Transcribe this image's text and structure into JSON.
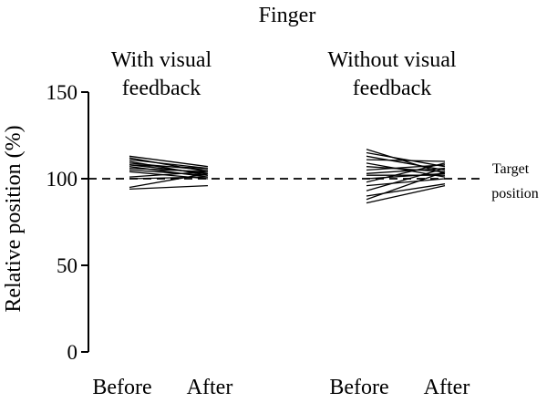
{
  "chart_data": {
    "type": "line",
    "title": "Finger",
    "ylabel": "Relative position (%)",
    "ylim": [
      0,
      150
    ],
    "yticks": [
      0,
      50,
      100,
      150
    ],
    "grid": false,
    "reference_line": {
      "y": 100,
      "label_line1": "Target",
      "label_line2": "position",
      "style": "dashed"
    },
    "groups": [
      {
        "label_line1": "With visual",
        "label_line2": "feedback",
        "categories": [
          "Before",
          "After"
        ],
        "pairs": [
          [
            113,
            107
          ],
          [
            112,
            104
          ],
          [
            111,
            106
          ],
          [
            110,
            102
          ],
          [
            109,
            105
          ],
          [
            108,
            103
          ],
          [
            108,
            106
          ],
          [
            107,
            101
          ],
          [
            106,
            104
          ],
          [
            105,
            102
          ],
          [
            104,
            100
          ],
          [
            95,
            103
          ],
          [
            94,
            96
          ],
          [
            101,
            104
          ],
          [
            100,
            101
          ]
        ]
      },
      {
        "label_line1": "Without visual",
        "label_line2": "feedback",
        "categories": [
          "Before",
          "After"
        ],
        "pairs": [
          [
            117,
            103
          ],
          [
            115,
            107
          ],
          [
            113,
            105
          ],
          [
            111,
            110
          ],
          [
            109,
            101
          ],
          [
            107,
            104
          ],
          [
            105,
            108
          ],
          [
            103,
            106
          ],
          [
            102,
            102
          ],
          [
            100,
            103
          ],
          [
            98,
            109
          ],
          [
            96,
            100
          ],
          [
            93,
            106
          ],
          [
            90,
            97
          ],
          [
            88,
            104
          ],
          [
            86,
            96
          ]
        ]
      }
    ]
  }
}
